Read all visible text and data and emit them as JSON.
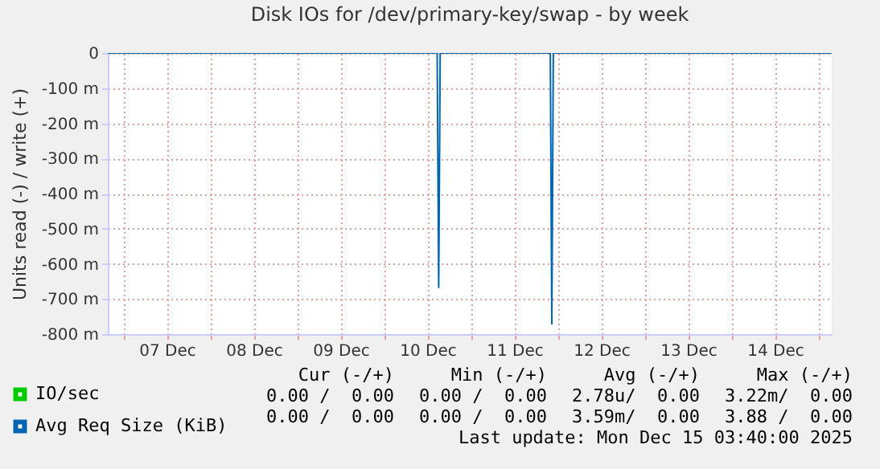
{
  "chart_data": {
    "type": "line",
    "title": "Disk IOs for /dev/primary-key/swap - by week",
    "ylabel": "Units read (-) / write (+)",
    "xlim": [
      "2025-12-06T19:40",
      "2025-12-15T03:40"
    ],
    "xticks": [
      {
        "value": "2025-12-07T00:00",
        "label": null
      },
      {
        "value": "2025-12-07T12:00",
        "label": "07 Dec"
      },
      {
        "value": "2025-12-08T00:00",
        "label": null
      },
      {
        "value": "2025-12-08T12:00",
        "label": "08 Dec"
      },
      {
        "value": "2025-12-09T00:00",
        "label": null
      },
      {
        "value": "2025-12-09T12:00",
        "label": "09 Dec"
      },
      {
        "value": "2025-12-10T00:00",
        "label": null
      },
      {
        "value": "2025-12-10T12:00",
        "label": "10 Dec"
      },
      {
        "value": "2025-12-11T00:00",
        "label": null
      },
      {
        "value": "2025-12-11T12:00",
        "label": "11 Dec"
      },
      {
        "value": "2025-12-12T00:00",
        "label": null
      },
      {
        "value": "2025-12-12T12:00",
        "label": "12 Dec"
      },
      {
        "value": "2025-12-13T00:00",
        "label": null
      },
      {
        "value": "2025-12-13T12:00",
        "label": "13 Dec"
      },
      {
        "value": "2025-12-14T00:00",
        "label": null
      },
      {
        "value": "2025-12-14T12:00",
        "label": "14 Dec"
      },
      {
        "value": "2025-12-15T00:00",
        "label": null
      }
    ],
    "ylim": [
      -800,
      0
    ],
    "yticks": [
      {
        "value": -800,
        "label": "-800 m"
      },
      {
        "value": -700,
        "label": "-700 m"
      },
      {
        "value": -600,
        "label": "-600 m"
      },
      {
        "value": -500,
        "label": "-500 m"
      },
      {
        "value": -400,
        "label": "-400 m"
      },
      {
        "value": -300,
        "label": "-300 m"
      },
      {
        "value": -200,
        "label": "-200 m"
      },
      {
        "value": -100,
        "label": "-100 m"
      },
      0
    ],
    "grid": true,
    "legend": "bottom left",
    "line_style": "solid",
    "series": [
      {
        "name": "IO/sec",
        "color": "#00cc00"
      },
      {
        "name": "Avg Req Size (KiB)",
        "color": "#0066b3",
        "x": [
          "2025-12-06T19:40",
          "2025-12-10T14:40",
          "2025-12-10T15:05",
          "2025-12-10T15:30",
          "2025-12-11T21:55",
          "2025-12-11T22:20",
          "2025-12-11T22:45",
          "2025-12-15T03:40"
        ],
        "values": [
          0,
          0,
          -667,
          0,
          0,
          -771,
          0,
          0
        ]
      }
    ],
    "annotations": [
      "Cur (-/+)",
      "Min (-/+)",
      "Avg (-/+)",
      "Max (-/+)",
      "0.00 /  0.00",
      "0.00 /  0.00",
      "2.78u/  0.00",
      "3.22m/  0.00",
      "0.00 /  0.00",
      "0.00 /  0.00",
      "3.59m/  0.00",
      "3.88 /  0.00",
      "Last update: Mon Dec 15 03:40:00 2025"
    ]
  }
}
